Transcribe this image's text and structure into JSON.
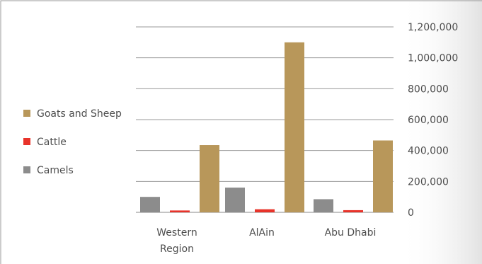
{
  "chart_data": {
    "type": "bar",
    "categories": [
      [
        "Western",
        "Region"
      ],
      [
        "AlAin"
      ],
      [
        "Abu Dhabi"
      ]
    ],
    "series": [
      {
        "name": "Camels",
        "color": "#8c8c8c",
        "values": [
          100000,
          160000,
          85000
        ]
      },
      {
        "name": "Cattle",
        "color": "#e8332a",
        "values": [
          12000,
          20000,
          14000
        ]
      },
      {
        "name": "Goats and Sheep",
        "color": "#b8975a",
        "values": [
          435000,
          1100000,
          465000
        ]
      }
    ],
    "ylim": [
      0,
      1200000
    ],
    "y_ticks": [
      "0",
      "200,000",
      "400,000",
      "600,000",
      "800,000",
      "1,000,000",
      "1,200,000"
    ],
    "y_tick_values": [
      0,
      200000,
      400000,
      600000,
      800000,
      1000000,
      1200000
    ],
    "y_axis_side": "right",
    "grid": true,
    "legend_position": "left",
    "legend_order": [
      "Goats and Sheep",
      "Cattle",
      "Camels"
    ],
    "title": "",
    "xlabel": "",
    "ylabel": ""
  }
}
